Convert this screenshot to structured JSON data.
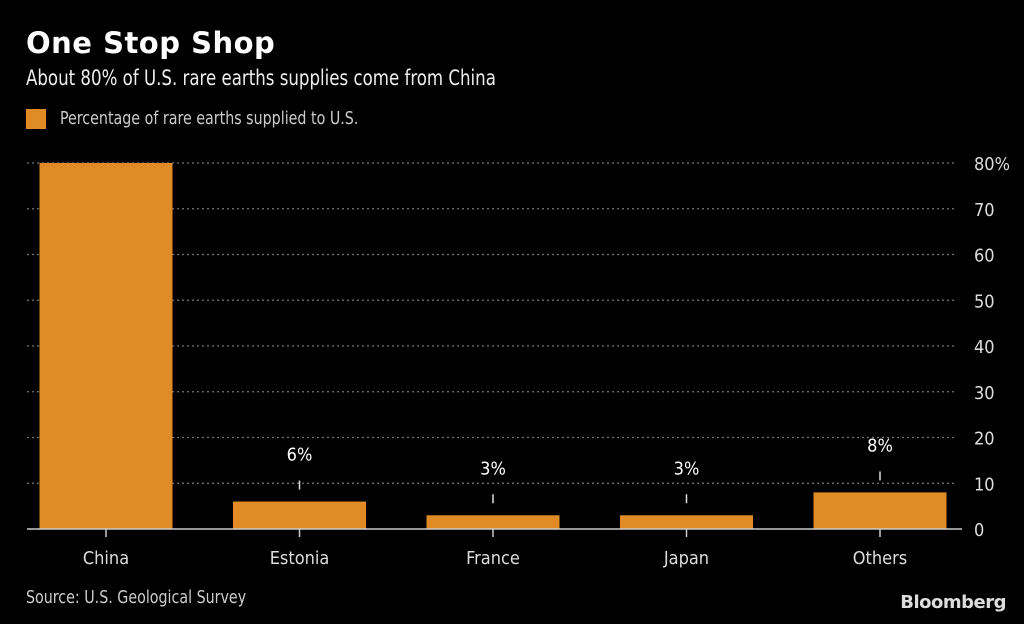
{
  "chart_data": {
    "type": "bar",
    "title": "One Stop Shop",
    "subtitle": "About 80% of U.S. rare earths supplies come from China",
    "categories": [
      "China",
      "Estonia",
      "France",
      "Japan",
      "Others"
    ],
    "series": [
      {
        "name": "Percentage of rare earths supplied to U.S.",
        "values": [
          80,
          6,
          3,
          3,
          8
        ]
      }
    ],
    "data_labels": [
      "",
      "6%",
      "3%",
      "3%",
      "8%"
    ],
    "ylim": [
      0,
      80
    ],
    "yticks": [
      0,
      10,
      20,
      30,
      40,
      50,
      60,
      70,
      80
    ],
    "ytick_labels": [
      "0",
      "10",
      "20",
      "30",
      "40",
      "50",
      "60",
      "70",
      "80%"
    ],
    "yaxis_position": "right",
    "grid": true,
    "legend_position": "top-left",
    "source": "Source: U.S. Geological Survey",
    "colors": {
      "bar": "#e08b26",
      "background": "#000000",
      "grid": "#777777"
    }
  },
  "branding": "Bloomberg"
}
